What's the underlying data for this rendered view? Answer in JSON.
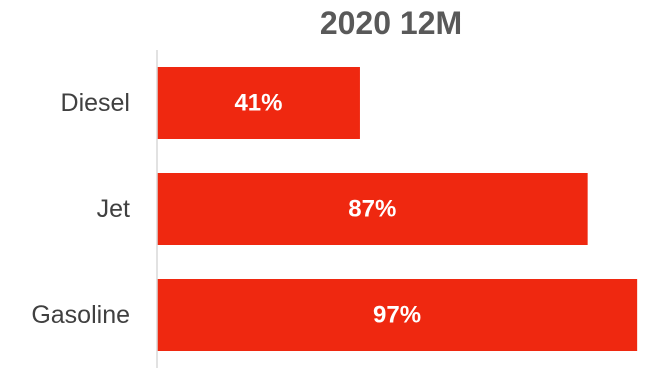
{
  "chart_data": {
    "type": "bar",
    "orientation": "horizontal",
    "title": "2020 12M",
    "categories": [
      "Diesel",
      "Jet",
      "Gasoline"
    ],
    "values": [
      41,
      87,
      97
    ],
    "data_labels": [
      "41%",
      "87%",
      "97%"
    ],
    "unit": "%",
    "xlim": [
      0,
      100
    ],
    "xlabel": "",
    "ylabel": "",
    "grid": false,
    "legend": "none",
    "bar_color": "#EF2810",
    "label_color": "#FFFFFF",
    "title_color": "#595959",
    "category_label_color": "#404040",
    "axis_color": "#D9D9D9"
  }
}
